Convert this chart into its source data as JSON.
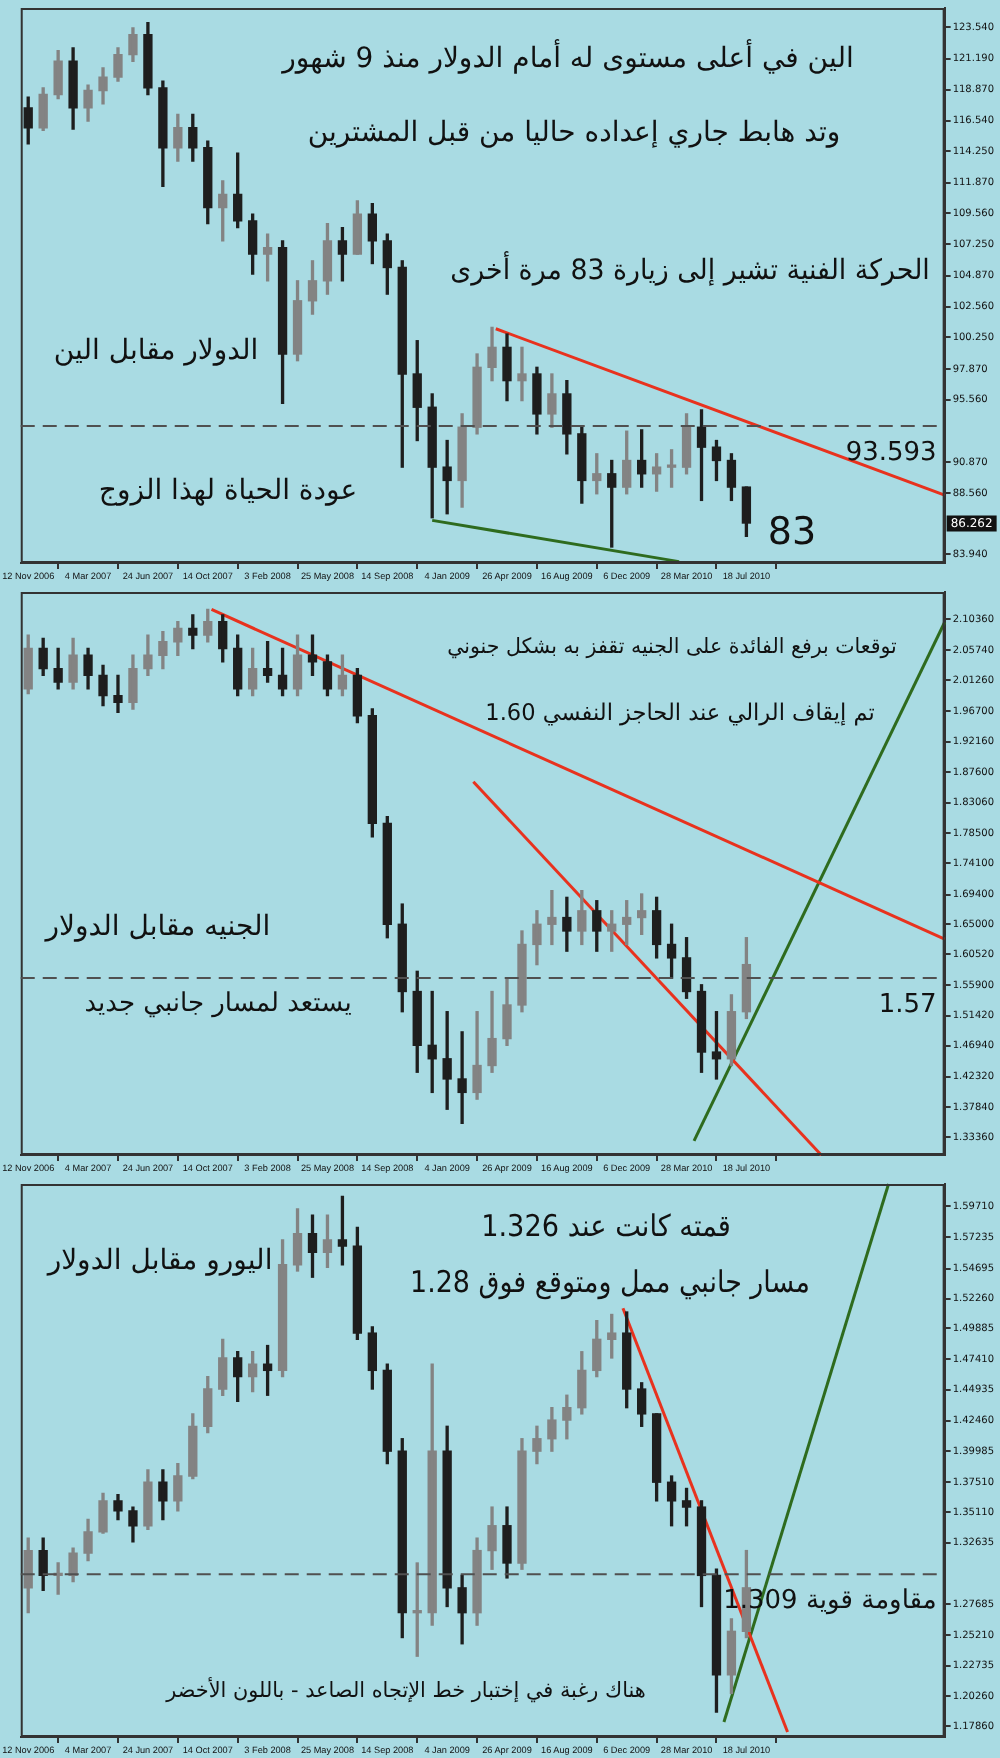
{
  "chart_data": [
    {
      "type": "candlestick",
      "legend": false,
      "grid": false,
      "colors": [
        "#1e1e1e",
        "#838383",
        "#838383",
        "#1e1e1e",
        "#838383",
        "#838383",
        "#838383",
        "#838383",
        "#1e1e1e",
        "#1e1e1e",
        "#838383",
        "#1e1e1e",
        "#1e1e1e",
        "#838383",
        "#1e1e1e",
        "#1e1e1e",
        "#838383",
        "#1e1e1e",
        "#838383",
        "#838383",
        "#838383",
        "#1e1e1e",
        "#838383",
        "#1e1e1e",
        "#1e1e1e",
        "#1e1e1e",
        "#1e1e1e",
        "#1e1e1e",
        "#1e1e1e",
        "#838383",
        "#838383",
        "#838383",
        "#1e1e1e",
        "#838383",
        "#1e1e1e",
        "#838383",
        "#1e1e1e",
        "#1e1e1e",
        "#838383",
        "#1e1e1e",
        "#838383",
        "#1e1e1e",
        "#838383",
        "#838383",
        "#838383",
        "#1e1e1e",
        "#1e1e1e",
        "#1e1e1e",
        "#1e1e1e"
      ],
      "x": [
        "2006-11-12",
        "2006-12-10",
        "2007-01-07",
        "2007-02-04",
        "2007-03-04",
        "2007-04-01",
        "2007-04-29",
        "2007-05-27",
        "2007-06-24",
        "2007-07-22",
        "2007-08-19",
        "2007-09-16",
        "2007-10-14",
        "2007-11-11",
        "2007-12-09",
        "2008-01-06",
        "2008-02-03",
        "2008-03-02",
        "2008-03-30",
        "2008-04-27",
        "2008-05-25",
        "2008-06-22",
        "2008-07-20",
        "2008-08-17",
        "2008-09-14",
        "2008-10-12",
        "2008-11-09",
        "2008-12-07",
        "2009-01-04",
        "2009-02-01",
        "2009-03-01",
        "2009-03-29",
        "2009-04-26",
        "2009-05-24",
        "2009-06-21",
        "2009-07-19",
        "2009-08-16",
        "2009-09-13",
        "2009-10-11",
        "2009-11-08",
        "2009-12-06",
        "2010-01-03",
        "2010-01-31",
        "2010-02-28",
        "2010-03-28",
        "2010-04-25",
        "2010-05-23",
        "2010-06-20",
        "2010-07-18"
      ],
      "ohlc": [
        [
          117.5,
          118.3,
          114.8,
          116.0
        ],
        [
          116.0,
          119.0,
          115.8,
          118.5
        ],
        [
          118.5,
          121.8,
          118.2,
          121.0
        ],
        [
          121.0,
          122.0,
          115.9,
          117.5
        ],
        [
          117.5,
          119.2,
          116.5,
          118.8
        ],
        [
          118.8,
          120.5,
          117.8,
          119.8
        ],
        [
          119.8,
          122.0,
          119.5,
          121.5
        ],
        [
          121.5,
          123.5,
          121.0,
          123.0
        ],
        [
          123.0,
          123.9,
          118.5,
          119.0
        ],
        [
          119.0,
          119.5,
          111.6,
          114.5
        ],
        [
          114.5,
          117.0,
          113.5,
          116.0
        ],
        [
          116.0,
          117.0,
          113.5,
          114.5
        ],
        [
          114.5,
          115.0,
          108.8,
          110.0
        ],
        [
          110.0,
          112.0,
          107.5,
          111.0
        ],
        [
          111.0,
          114.1,
          108.5,
          109.0
        ],
        [
          109.0,
          109.5,
          105.0,
          106.5
        ],
        [
          106.5,
          108.0,
          104.5,
          107.0
        ],
        [
          107.0,
          107.5,
          95.3,
          99.0
        ],
        [
          99.0,
          104.5,
          98.5,
          103.0
        ],
        [
          103.0,
          106.0,
          102.0,
          104.5
        ],
        [
          104.5,
          108.8,
          103.5,
          107.5
        ],
        [
          107.5,
          108.5,
          104.5,
          106.5
        ],
        [
          106.5,
          110.5,
          106.5,
          109.5
        ],
        [
          109.5,
          110.3,
          105.8,
          107.5
        ],
        [
          107.5,
          108.0,
          103.5,
          105.5
        ],
        [
          105.5,
          106.0,
          90.5,
          97.5
        ],
        [
          97.5,
          100.0,
          92.5,
          95.0
        ],
        [
          95.0,
          96.0,
          86.7,
          90.5
        ],
        [
          90.5,
          92.5,
          87.0,
          89.5
        ],
        [
          89.5,
          94.5,
          87.5,
          93.5
        ],
        [
          93.5,
          99.0,
          93.0,
          98.0
        ],
        [
          98.0,
          101.0,
          97.0,
          99.5
        ],
        [
          99.5,
          100.5,
          95.5,
          97.0
        ],
        [
          97.0,
          99.5,
          95.5,
          97.5
        ],
        [
          97.5,
          98.0,
          93.0,
          94.5
        ],
        [
          94.5,
          97.5,
          93.5,
          96.0
        ],
        [
          96.0,
          97.0,
          91.5,
          93.0
        ],
        [
          93.0,
          93.5,
          87.8,
          89.5
        ],
        [
          89.5,
          91.5,
          88.5,
          90.0
        ],
        [
          90.0,
          91.0,
          84.5,
          89.0
        ],
        [
          89.0,
          93.2,
          88.5,
          91.0
        ],
        [
          91.0,
          93.3,
          89.0,
          90.0
        ],
        [
          90.0,
          91.5,
          88.7,
          90.5
        ],
        [
          90.5,
          91.8,
          89.0,
          90.5
        ],
        [
          90.5,
          94.5,
          90.0,
          93.5
        ],
        [
          93.5,
          94.8,
          88.0,
          92.0
        ],
        [
          92.0,
          92.5,
          89.5,
          91.0
        ],
        [
          91.0,
          91.5,
          88.0,
          89.0
        ],
        [
          89.0,
          89.0,
          85.3,
          86.3
        ]
      ],
      "series": [
        {
          "type": "line",
          "color": "#e8321e",
          "x": [
            "2009-04-05",
            "2011-07-24"
          ],
          "values": [
            100.9,
            88.4
          ]
        },
        {
          "type": "line",
          "color": "#2e6b1e",
          "x": [
            "2008-12-07",
            "2010-03-14"
          ],
          "values": [
            86.5,
            83.4
          ]
        }
      ],
      "xlim": [
        "2006-10-29",
        "2011-07-24"
      ],
      "xticks": [
        {
          "value": "2006-11-12",
          "label": "12 Nov 2006"
        },
        {
          "value": "2007-03-04",
          "label": "4 Mar 2007"
        },
        {
          "value": "2007-06-24",
          "label": "24 Jun 2007"
        },
        {
          "value": "2007-10-14",
          "label": "14 Oct 2007"
        },
        {
          "value": "2008-02-03",
          "label": "3 Feb 2008"
        },
        {
          "value": "2008-05-25",
          "label": "25 May 2008"
        },
        {
          "value": "2008-09-14",
          "label": "14 Sep 2008"
        },
        {
          "value": "2009-01-04",
          "label": "4 Jan 2009"
        },
        {
          "value": "2009-04-26",
          "label": "26 Apr 2009"
        },
        {
          "value": "2009-08-16",
          "label": "16 Aug 2009"
        },
        {
          "value": "2009-12-06",
          "label": "6 Dec 2009"
        },
        {
          "value": "2010-03-28",
          "label": "28 Mar 2010"
        },
        {
          "value": "2010-07-18",
          "label": "18 Jul 2010"
        }
      ],
      "ylim": [
        83.3,
        125.0
      ],
      "yticks": [
        {
          "value": 123.54,
          "label": "123.540"
        },
        {
          "value": 121.19,
          "label": "121.190"
        },
        {
          "value": 118.87,
          "label": "118.870"
        },
        {
          "value": 116.54,
          "label": "116.540"
        },
        {
          "value": 114.25,
          "label": "114.250"
        },
        {
          "value": 111.87,
          "label": "111.870"
        },
        {
          "value": 109.56,
          "label": "109.560"
        },
        {
          "value": 107.25,
          "label": "107.250"
        },
        {
          "value": 104.87,
          "label": "104.870"
        },
        {
          "value": 102.56,
          "label": "102.560"
        },
        {
          "value": 100.25,
          "label": "100.250"
        },
        {
          "value": 97.87,
          "label": "97.870"
        },
        {
          "value": 95.56,
          "label": "95.560"
        },
        {
          "value": 90.87,
          "label": "90.870"
        },
        {
          "value": 88.56,
          "label": "88.560"
        },
        {
          "value": 83.94,
          "label": "83.940"
        }
      ],
      "ref_lines": [
        {
          "axis": "y",
          "value": 93.593,
          "label": "93.593",
          "line_style": "dashed",
          "color": "#505050"
        }
      ],
      "annotations": [
        "الين في أعلى مستوى له أمام الدولار منذ 9 شهور",
        "وتد هابط جاري إعداده حاليا من قبل المشترين",
        "الحركة الفنية تشير إلى زيارة 83 مرة أخرى",
        "الدولار مقابل الين",
        "عودة الحياة لهذا الزوج",
        "83",
        {
          "text": "86.262",
          "y": 86.262
        }
      ]
    },
    {
      "type": "candlestick",
      "legend": false,
      "grid": false,
      "colors": [
        "#838383",
        "#1e1e1e",
        "#1e1e1e",
        "#838383",
        "#1e1e1e",
        "#1e1e1e",
        "#1e1e1e",
        "#838383",
        "#838383",
        "#838383",
        "#838383",
        "#1e1e1e",
        "#838383",
        "#1e1e1e",
        "#1e1e1e",
        "#838383",
        "#1e1e1e",
        "#1e1e1e",
        "#838383",
        "#1e1e1e",
        "#1e1e1e",
        "#838383",
        "#1e1e1e",
        "#1e1e1e",
        "#1e1e1e",
        "#1e1e1e",
        "#1e1e1e",
        "#1e1e1e",
        "#1e1e1e",
        "#1e1e1e",
        "#838383",
        "#838383",
        "#838383",
        "#838383",
        "#838383",
        "#838383",
        "#1e1e1e",
        "#838383",
        "#1e1e1e",
        "#838383",
        "#838383",
        "#838383",
        "#1e1e1e",
        "#1e1e1e",
        "#1e1e1e",
        "#1e1e1e",
        "#1e1e1e",
        "#838383",
        "#838383"
      ],
      "x": [
        "2006-11-12",
        "2006-12-10",
        "2007-01-07",
        "2007-02-04",
        "2007-03-04",
        "2007-04-01",
        "2007-04-29",
        "2007-05-27",
        "2007-06-24",
        "2007-07-22",
        "2007-08-19",
        "2007-09-16",
        "2007-10-14",
        "2007-11-11",
        "2007-12-09",
        "2008-01-06",
        "2008-02-03",
        "2008-03-02",
        "2008-03-30",
        "2008-04-27",
        "2008-05-25",
        "2008-06-22",
        "2008-07-20",
        "2008-08-17",
        "2008-09-14",
        "2008-10-12",
        "2008-11-09",
        "2008-12-07",
        "2009-01-04",
        "2009-02-01",
        "2009-03-01",
        "2009-03-29",
        "2009-04-26",
        "2009-05-24",
        "2009-06-21",
        "2009-07-19",
        "2009-08-16",
        "2009-09-13",
        "2009-10-11",
        "2009-11-08",
        "2009-12-06",
        "2010-01-03",
        "2010-01-31",
        "2010-02-28",
        "2010-03-28",
        "2010-04-25",
        "2010-05-23",
        "2010-06-20",
        "2010-07-18"
      ],
      "ohlc": [
        [
          2.0,
          2.08,
          1.993,
          2.06
        ],
        [
          2.06,
          2.075,
          2.02,
          2.03
        ],
        [
          2.03,
          2.06,
          2.0,
          2.01
        ],
        [
          2.01,
          2.075,
          2.0,
          2.05
        ],
        [
          2.05,
          2.06,
          2.0,
          2.02
        ],
        [
          2.02,
          2.035,
          1.975,
          1.99
        ],
        [
          1.99,
          2.02,
          1.965,
          1.98
        ],
        [
          1.98,
          2.05,
          1.97,
          2.03
        ],
        [
          2.03,
          2.08,
          2.02,
          2.05
        ],
        [
          2.05,
          2.085,
          2.03,
          2.07
        ],
        [
          2.07,
          2.1,
          2.05,
          2.09
        ],
        [
          2.09,
          2.11,
          2.06,
          2.08
        ],
        [
          2.08,
          2.118,
          2.07,
          2.1
        ],
        [
          2.1,
          2.11,
          2.04,
          2.06
        ],
        [
          2.06,
          2.08,
          1.99,
          2.0
        ],
        [
          2.0,
          2.06,
          1.99,
          2.03
        ],
        [
          2.03,
          2.07,
          2.01,
          2.02
        ],
        [
          2.02,
          2.06,
          1.99,
          2.0
        ],
        [
          2.0,
          2.08,
          1.99,
          2.05
        ],
        [
          2.05,
          2.08,
          2.02,
          2.04
        ],
        [
          2.04,
          2.05,
          1.99,
          2.0
        ],
        [
          2.0,
          2.05,
          1.99,
          2.02
        ],
        [
          2.02,
          2.03,
          1.95,
          1.96
        ],
        [
          1.96,
          1.97,
          1.78,
          1.8
        ],
        [
          1.8,
          1.81,
          1.63,
          1.65
        ],
        [
          1.65,
          1.68,
          1.52,
          1.55
        ],
        [
          1.55,
          1.58,
          1.43,
          1.47
        ],
        [
          1.47,
          1.55,
          1.4,
          1.45
        ],
        [
          1.45,
          1.52,
          1.375,
          1.42
        ],
        [
          1.42,
          1.49,
          1.354,
          1.4
        ],
        [
          1.4,
          1.52,
          1.39,
          1.44
        ],
        [
          1.44,
          1.55,
          1.43,
          1.48
        ],
        [
          1.48,
          1.57,
          1.47,
          1.53
        ],
        [
          1.53,
          1.64,
          1.52,
          1.62
        ],
        [
          1.62,
          1.67,
          1.59,
          1.65
        ],
        [
          1.65,
          1.7,
          1.62,
          1.66
        ],
        [
          1.66,
          1.69,
          1.61,
          1.64
        ],
        [
          1.64,
          1.7,
          1.62,
          1.67
        ],
        [
          1.67,
          1.685,
          1.61,
          1.64
        ],
        [
          1.64,
          1.67,
          1.61,
          1.65
        ],
        [
          1.65,
          1.685,
          1.62,
          1.66
        ],
        [
          1.66,
          1.695,
          1.635,
          1.67
        ],
        [
          1.67,
          1.69,
          1.6,
          1.62
        ],
        [
          1.62,
          1.65,
          1.57,
          1.6
        ],
        [
          1.6,
          1.63,
          1.54,
          1.55
        ],
        [
          1.55,
          1.56,
          1.43,
          1.46
        ],
        [
          1.46,
          1.52,
          1.42,
          1.45
        ],
        [
          1.45,
          1.545,
          1.44,
          1.52
        ],
        [
          1.52,
          1.63,
          1.51,
          1.59
        ]
      ],
      "series": [
        {
          "type": "line",
          "color": "#e8321e",
          "x": [
            "2007-10-21",
            "2011-07-24"
          ],
          "values": [
            2.118,
            1.628
          ]
        },
        {
          "type": "line",
          "color": "#e8321e",
          "x": [
            "2009-02-22",
            "2010-12-05"
          ],
          "values": [
            1.862,
            1.307
          ]
        },
        {
          "type": "line",
          "color": "#2e6b1e",
          "x": [
            "2010-04-11",
            "2011-07-24"
          ],
          "values": [
            1.328,
            2.099
          ]
        }
      ],
      "xlim": [
        "2006-10-29",
        "2011-07-24"
      ],
      "xticks": [
        {
          "value": "2006-11-12",
          "label": "12 Nov 2006"
        },
        {
          "value": "2007-03-04",
          "label": "4 Mar 2007"
        },
        {
          "value": "2007-06-24",
          "label": "24 Jun 2007"
        },
        {
          "value": "2007-10-14",
          "label": "14 Oct 2007"
        },
        {
          "value": "2008-02-03",
          "label": "3 Feb 2008"
        },
        {
          "value": "2008-05-25",
          "label": "25 May 2008"
        },
        {
          "value": "2008-09-14",
          "label": "14 Sep 2008"
        },
        {
          "value": "2009-01-04",
          "label": "4 Jan 2009"
        },
        {
          "value": "2009-04-26",
          "label": "26 Apr 2009"
        },
        {
          "value": "2009-08-16",
          "label": "16 Aug 2009"
        },
        {
          "value": "2009-12-06",
          "label": "6 Dec 2009"
        },
        {
          "value": "2010-03-28",
          "label": "28 Mar 2010"
        },
        {
          "value": "2010-07-18",
          "label": "18 Jul 2010"
        }
      ],
      "ylim": [
        1.307,
        2.144
      ],
      "yticks": [
        {
          "value": 2.1036,
          "label": "2.10360"
        },
        {
          "value": 2.0574,
          "label": "2.05740"
        },
        {
          "value": 2.0126,
          "label": "2.01260"
        },
        {
          "value": 1.967,
          "label": "1.96700"
        },
        {
          "value": 1.9216,
          "label": "1.92160"
        },
        {
          "value": 1.876,
          "label": "1.87600"
        },
        {
          "value": 1.8306,
          "label": "1.83060"
        },
        {
          "value": 1.785,
          "label": "1.78500"
        },
        {
          "value": 1.741,
          "label": "1.74100"
        },
        {
          "value": 1.694,
          "label": "1.69400"
        },
        {
          "value": 1.65,
          "label": "1.65000"
        },
        {
          "value": 1.6052,
          "label": "1.60520"
        },
        {
          "value": 1.559,
          "label": "1.55900"
        },
        {
          "value": 1.5142,
          "label": "1.51420"
        },
        {
          "value": 1.4694,
          "label": "1.46940"
        },
        {
          "value": 1.4232,
          "label": "1.42320"
        },
        {
          "value": 1.3784,
          "label": "1.37840"
        },
        {
          "value": 1.3336,
          "label": "1.33360"
        }
      ],
      "ref_lines": [
        {
          "axis": "y",
          "value": 1.57,
          "label": "1.57",
          "line_style": "dashed",
          "color": "#505050"
        }
      ],
      "annotations": [
        "توقعات برفع الفائدة على الجنيه تقفز به بشكل جنوني",
        "تم إيقاف الرالي عند الحاجز النفسي 1.60",
        "الجنيه مقابل الدولار",
        "يستعد لمسار جانبي جديد"
      ]
    },
    {
      "type": "candlestick",
      "legend": false,
      "grid": false,
      "colors": [
        "#838383",
        "#1e1e1e",
        "#838383",
        "#838383",
        "#838383",
        "#838383",
        "#1e1e1e",
        "#1e1e1e",
        "#838383",
        "#1e1e1e",
        "#838383",
        "#838383",
        "#838383",
        "#838383",
        "#1e1e1e",
        "#838383",
        "#1e1e1e",
        "#838383",
        "#838383",
        "#1e1e1e",
        "#838383",
        "#1e1e1e",
        "#1e1e1e",
        "#1e1e1e",
        "#1e1e1e",
        "#1e1e1e",
        "#838383",
        "#838383",
        "#1e1e1e",
        "#1e1e1e",
        "#838383",
        "#838383",
        "#1e1e1e",
        "#838383",
        "#838383",
        "#838383",
        "#838383",
        "#838383",
        "#838383",
        "#838383",
        "#1e1e1e",
        "#1e1e1e",
        "#1e1e1e",
        "#1e1e1e",
        "#1e1e1e",
        "#1e1e1e",
        "#1e1e1e",
        "#838383",
        "#838383"
      ],
      "x": [
        "2006-11-12",
        "2006-12-10",
        "2007-01-07",
        "2007-02-04",
        "2007-03-04",
        "2007-04-01",
        "2007-04-29",
        "2007-05-27",
        "2007-06-24",
        "2007-07-22",
        "2007-08-19",
        "2007-09-16",
        "2007-10-14",
        "2007-11-11",
        "2007-12-09",
        "2008-01-06",
        "2008-02-03",
        "2008-03-02",
        "2008-03-30",
        "2008-04-27",
        "2008-05-25",
        "2008-06-22",
        "2008-07-20",
        "2008-08-17",
        "2008-09-14",
        "2008-10-12",
        "2008-11-09",
        "2008-12-07",
        "2009-01-04",
        "2009-02-01",
        "2009-03-01",
        "2009-03-29",
        "2009-04-26",
        "2009-05-24",
        "2009-06-21",
        "2009-07-19",
        "2009-08-16",
        "2009-09-13",
        "2009-10-11",
        "2009-11-08",
        "2009-12-06",
        "2010-01-03",
        "2010-01-31",
        "2010-02-28",
        "2010-03-28",
        "2010-04-25",
        "2010-05-23",
        "2010-06-20",
        "2010-07-18"
      ],
      "ohlc": [
        [
          1.29,
          1.33,
          1.27,
          1.32
        ],
        [
          1.32,
          1.33,
          1.288,
          1.3
        ],
        [
          1.3,
          1.31,
          1.285,
          1.3
        ],
        [
          1.3,
          1.322,
          1.295,
          1.318
        ],
        [
          1.318,
          1.345,
          1.312,
          1.335
        ],
        [
          1.335,
          1.366,
          1.334,
          1.36
        ],
        [
          1.36,
          1.365,
          1.345,
          1.352
        ],
        [
          1.352,
          1.355,
          1.327,
          1.34
        ],
        [
          1.34,
          1.385,
          1.337,
          1.375
        ],
        [
          1.375,
          1.385,
          1.345,
          1.36
        ],
        [
          1.36,
          1.39,
          1.352,
          1.38
        ],
        [
          1.38,
          1.43,
          1.378,
          1.42
        ],
        [
          1.42,
          1.46,
          1.415,
          1.45
        ],
        [
          1.45,
          1.49,
          1.445,
          1.475
        ],
        [
          1.475,
          1.48,
          1.44,
          1.46
        ],
        [
          1.46,
          1.48,
          1.448,
          1.47
        ],
        [
          1.47,
          1.485,
          1.445,
          1.465
        ],
        [
          1.465,
          1.57,
          1.46,
          1.55
        ],
        [
          1.55,
          1.595,
          1.545,
          1.575
        ],
        [
          1.575,
          1.59,
          1.54,
          1.56
        ],
        [
          1.56,
          1.59,
          1.548,
          1.57
        ],
        [
          1.57,
          1.605,
          1.55,
          1.565
        ],
        [
          1.565,
          1.58,
          1.49,
          1.495
        ],
        [
          1.495,
          1.5,
          1.45,
          1.465
        ],
        [
          1.465,
          1.47,
          1.39,
          1.4
        ],
        [
          1.4,
          1.41,
          1.25,
          1.27
        ],
        [
          1.27,
          1.31,
          1.235,
          1.27
        ],
        [
          1.27,
          1.47,
          1.26,
          1.4
        ],
        [
          1.4,
          1.42,
          1.275,
          1.29
        ],
        [
          1.29,
          1.3,
          1.245,
          1.27
        ],
        [
          1.27,
          1.33,
          1.26,
          1.32
        ],
        [
          1.32,
          1.355,
          1.305,
          1.34
        ],
        [
          1.34,
          1.355,
          1.298,
          1.31
        ],
        [
          1.31,
          1.41,
          1.305,
          1.4
        ],
        [
          1.4,
          1.42,
          1.39,
          1.41
        ],
        [
          1.41,
          1.435,
          1.4,
          1.425
        ],
        [
          1.425,
          1.445,
          1.41,
          1.435
        ],
        [
          1.435,
          1.48,
          1.43,
          1.465
        ],
        [
          1.465,
          1.505,
          1.46,
          1.49
        ],
        [
          1.49,
          1.51,
          1.475,
          1.495
        ],
        [
          1.495,
          1.512,
          1.435,
          1.45
        ],
        [
          1.45,
          1.455,
          1.42,
          1.43
        ],
        [
          1.43,
          1.43,
          1.36,
          1.375
        ],
        [
          1.375,
          1.38,
          1.34,
          1.36
        ],
        [
          1.36,
          1.37,
          1.34,
          1.355
        ],
        [
          1.355,
          1.36,
          1.275,
          1.3
        ],
        [
          1.3,
          1.305,
          1.19,
          1.22
        ],
        [
          1.22,
          1.265,
          1.205,
          1.255
        ],
        [
          1.255,
          1.32,
          1.25,
          1.29
        ]
      ],
      "series": [
        {
          "type": "line",
          "color": "#e8321e",
          "x": [
            "2009-11-29",
            "2010-10-03"
          ],
          "values": [
            1.515,
            1.174
          ]
        },
        {
          "type": "line",
          "color": "#2e6b1e",
          "x": [
            "2010-06-06",
            "2011-04-10"
          ],
          "values": [
            1.182,
            1.615
          ]
        }
      ],
      "xlim": [
        "2006-10-29",
        "2011-07-24"
      ],
      "xticks": [
        {
          "value": "2006-11-12",
          "label": "12 Nov 2006"
        },
        {
          "value": "2007-03-04",
          "label": "4 Mar 2007"
        },
        {
          "value": "2007-06-24",
          "label": "24 Jun 2007"
        },
        {
          "value": "2007-10-14",
          "label": "14 Oct 2007"
        },
        {
          "value": "2008-02-03",
          "label": "3 Feb 2008"
        },
        {
          "value": "2008-05-25",
          "label": "25 May 2008"
        },
        {
          "value": "2008-09-14",
          "label": "14 Sep 2008"
        },
        {
          "value": "2009-01-04",
          "label": "4 Jan 2009"
        },
        {
          "value": "2009-04-26",
          "label": "26 Apr 2009"
        },
        {
          "value": "2009-08-16",
          "label": "16 Aug 2009"
        },
        {
          "value": "2009-12-06",
          "label": "6 Dec 2009"
        },
        {
          "value": "2010-03-28",
          "label": "28 Mar 2010"
        },
        {
          "value": "2010-07-18",
          "label": "18 Jul 2010"
        }
      ],
      "ylim": [
        1.17,
        1.615
      ],
      "yticks": [
        {
          "value": 1.5971,
          "label": "1.59710"
        },
        {
          "value": 1.57235,
          "label": "1.57235"
        },
        {
          "value": 1.54695,
          "label": "1.54695"
        },
        {
          "value": 1.5226,
          "label": "1.52260"
        },
        {
          "value": 1.49885,
          "label": "1.49885"
        },
        {
          "value": 1.4741,
          "label": "1.47410"
        },
        {
          "value": 1.44935,
          "label": "1.44935"
        },
        {
          "value": 1.4246,
          "label": "1.42460"
        },
        {
          "value": 1.39985,
          "label": "1.39985"
        },
        {
          "value": 1.3751,
          "label": "1.37510"
        },
        {
          "value": 1.3511,
          "label": "1.35110"
        },
        {
          "value": 1.32635,
          "label": "1.32635"
        },
        {
          "value": 1.27685,
          "label": "1.27685"
        },
        {
          "value": 1.2521,
          "label": "1.25210"
        },
        {
          "value": 1.22735,
          "label": "1.22735"
        },
        {
          "value": 1.2026,
          "label": "1.20260"
        },
        {
          "value": 1.1786,
          "label": "1.17860"
        }
      ],
      "ref_lines": [
        {
          "axis": "y",
          "value": 1.301,
          "label": "مقاومة قوية 1.309",
          "line_style": "dashed",
          "color": "#505050"
        }
      ],
      "annotations": [
        "قمته كانت عند 1.326",
        "مسار جانبي ممل ومتوقع فوق 1.28",
        "اليورو مقابل الدولار",
        "هناك رغبة في إختبار خط الإتجاه الصاعد - باللون الأخضر"
      ]
    }
  ]
}
